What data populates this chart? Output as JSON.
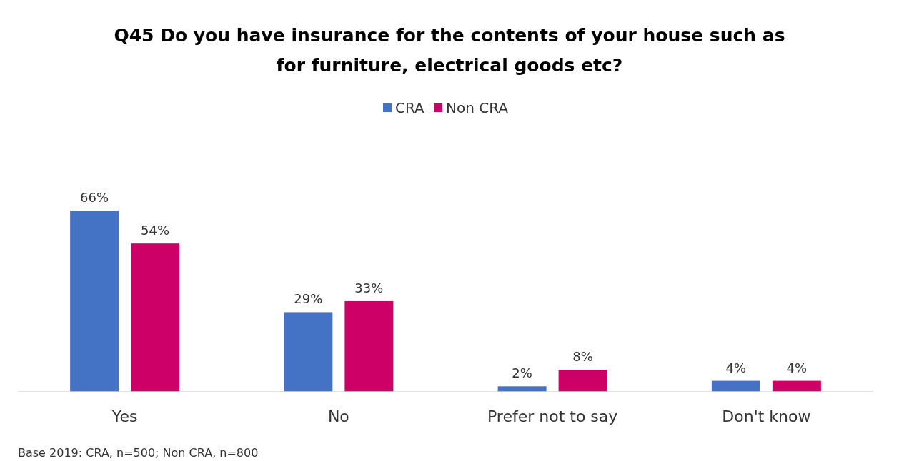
{
  "chart_data": {
    "type": "bar",
    "title": "Q45 Do you have insurance for the contents of your house such as for furniture, electrical goods etc?",
    "categories": [
      "Yes",
      "No",
      "Prefer not to say",
      "Don't know"
    ],
    "series": [
      {
        "name": "CRA",
        "color": "#4472c4",
        "values": [
          66,
          29,
          2,
          4
        ],
        "value_labels": [
          "66%",
          "29%",
          "2%",
          "4%"
        ]
      },
      {
        "name": "Non CRA",
        "color": "#cc0066",
        "values": [
          54,
          33,
          8,
          4
        ],
        "value_labels": [
          "54%",
          "33%",
          "8%",
          "4%"
        ]
      }
    ],
    "legend": "top",
    "grid": false,
    "annotations": [
      "Base 2019: CRA, n=500; Non CRA, n=800"
    ]
  }
}
